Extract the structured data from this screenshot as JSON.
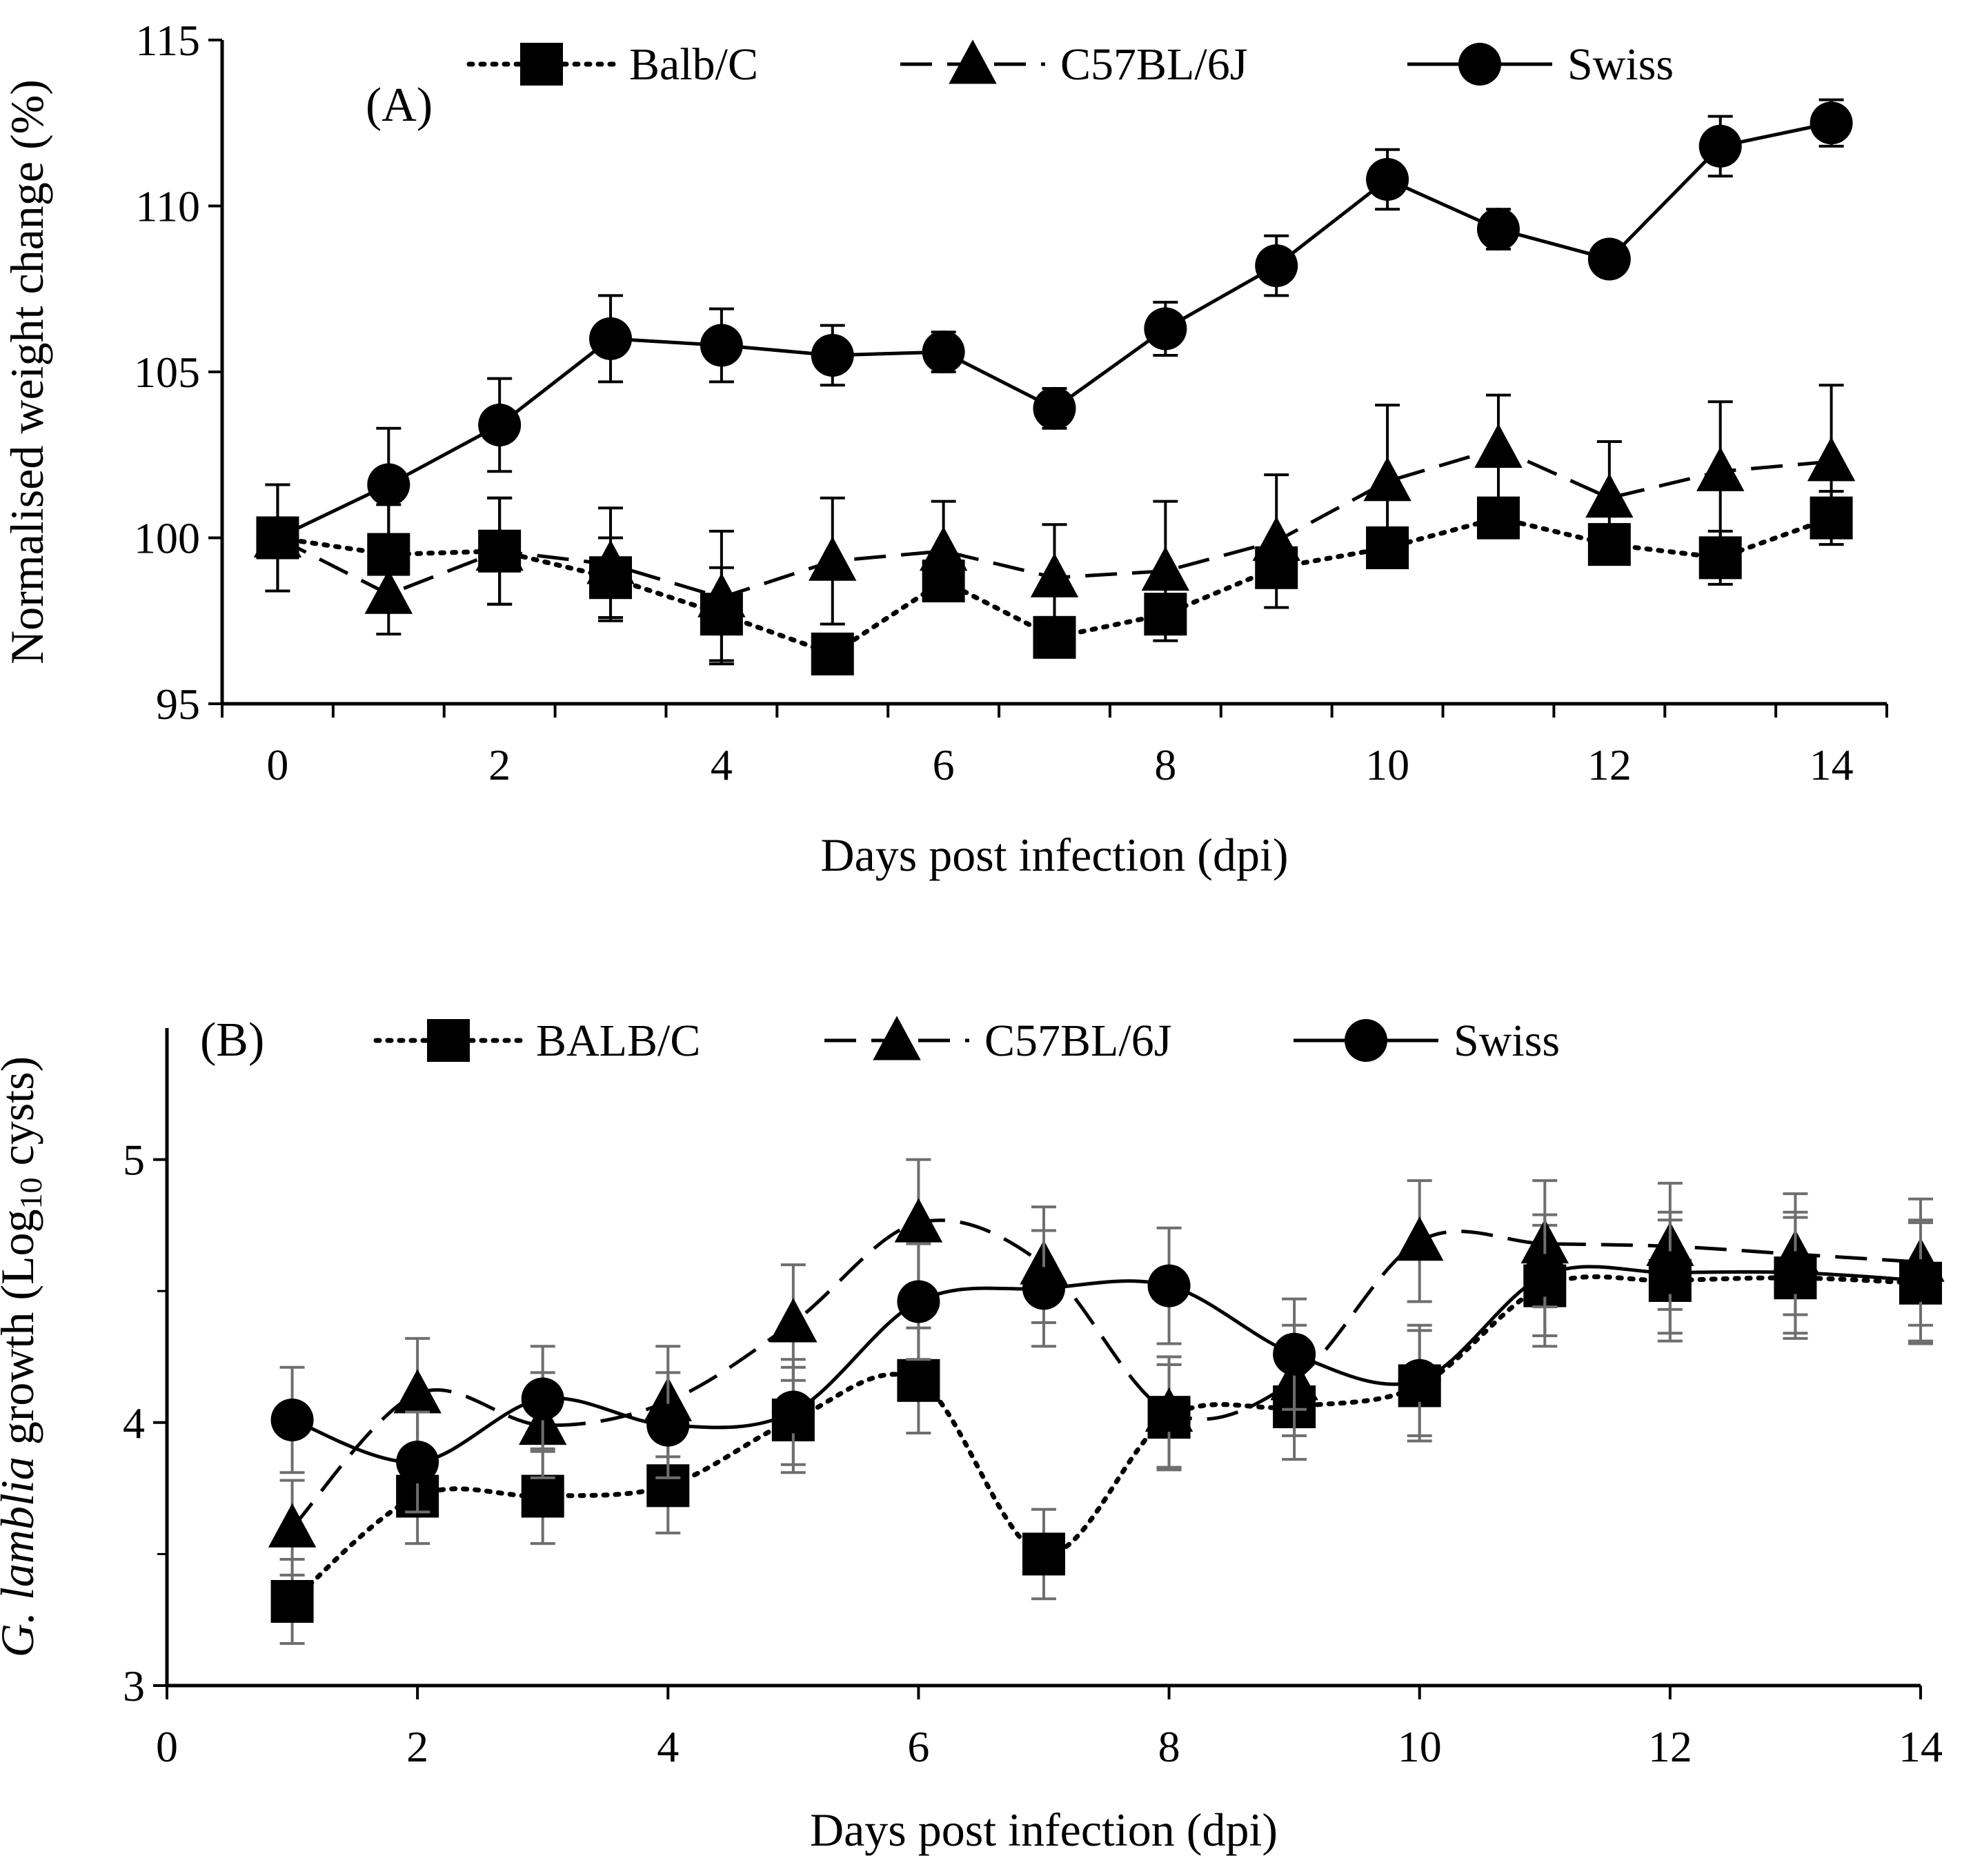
{
  "chart_data": [
    {
      "type": "line",
      "panel_label": "(A)",
      "xlabel": "Days post infection  (dpi)",
      "ylabel": "Normalised weight change (%)",
      "xlim": [
        -0.5,
        14.5
      ],
      "ylim": [
        95,
        115
      ],
      "xticks": [
        "0",
        "2",
        "4",
        "6",
        "8",
        "10",
        "12",
        "14"
      ],
      "yticks": [
        "95",
        "100",
        "105",
        "110",
        "115"
      ],
      "x": [
        0,
        1,
        2,
        3,
        4,
        5,
        6,
        7,
        8,
        9,
        10,
        11,
        12,
        13,
        14
      ],
      "legend_position": "top",
      "series": [
        {
          "name": "Balb/C",
          "marker": "square",
          "line": "dotted",
          "error_color": "#000000",
          "values": [
            100.0,
            99.5,
            99.6,
            98.8,
            97.7,
            96.5,
            98.7,
            97.0,
            97.7,
            99.1,
            99.7,
            100.6,
            99.8,
            99.4,
            100.6
          ],
          "errors": [
            1.6,
            1.5,
            1.6,
            1.2,
            1.4,
            0.0,
            0.0,
            0.0,
            0.0,
            0.0,
            0.0,
            0.0,
            0.0,
            0.8,
            0.8
          ]
        },
        {
          "name": "C57BL/6J",
          "marker": "triangle",
          "line": "dashed",
          "error_color": "#000000",
          "values": [
            100.0,
            98.3,
            99.6,
            99.2,
            98.2,
            99.3,
            99.6,
            98.8,
            99.0,
            99.9,
            101.7,
            102.7,
            101.2,
            102.0,
            102.3
          ],
          "errors": [
            1.6,
            1.2,
            1.6,
            1.7,
            2.0,
            1.9,
            1.5,
            1.6,
            2.1,
            2.0,
            2.3,
            1.6,
            1.7,
            2.1,
            2.3
          ]
        },
        {
          "name": "Swiss",
          "marker": "circle",
          "line": "solid",
          "error_color": "#000000",
          "values": [
            100.0,
            101.6,
            103.4,
            106.0,
            105.8,
            105.5,
            105.6,
            103.9,
            106.3,
            108.2,
            110.8,
            109.3,
            108.4,
            111.8,
            112.5
          ],
          "errors": [
            0.0,
            1.7,
            1.4,
            1.3,
            1.1,
            0.9,
            0.6,
            0.6,
            0.8,
            0.9,
            0.9,
            0.6,
            0.0,
            0.9,
            0.7
          ]
        }
      ]
    },
    {
      "type": "line",
      "panel_label": "(B)",
      "xlabel": "Days post infection (dpi)",
      "ylabel_italic": "G. lamblia",
      "ylabel_main": " growth (Log",
      "ylabel_sub": "10",
      "ylabel_end": " cysts)",
      "xlim": [
        0,
        14
      ],
      "ylim": [
        3,
        5.5
      ],
      "xticks": [
        "0",
        "2",
        "4",
        "6",
        "8",
        "10",
        "12",
        "14"
      ],
      "yticks": [
        "3",
        "4",
        "5"
      ],
      "x": [
        1,
        2,
        3,
        4,
        5,
        6,
        7,
        8,
        9,
        10,
        11,
        12,
        13,
        14
      ],
      "legend_position": "top",
      "series": [
        {
          "name": "BALB/C",
          "marker": "square",
          "line": "dotted",
          "error_color": "#6e6e6e",
          "values": [
            3.32,
            3.72,
            3.72,
            3.76,
            4.01,
            4.16,
            3.5,
            4.02,
            4.06,
            4.14,
            4.52,
            4.54,
            4.55,
            4.53
          ],
          "errors": [
            0.16,
            0.18,
            0.18,
            0.18,
            0.2,
            0.2,
            0.17,
            0.2,
            0.2,
            0.21,
            0.23,
            0.23,
            0.23,
            0.23
          ]
        },
        {
          "name": "C57BL/6J",
          "marker": "triangle",
          "line": "dashed",
          "error_color": "#6e6e6e",
          "values": [
            3.6,
            4.11,
            3.99,
            4.08,
            4.38,
            4.76,
            4.6,
            4.04,
            4.16,
            4.69,
            4.68,
            4.67,
            4.64,
            4.61
          ],
          "errors": [
            0.18,
            0.21,
            0.2,
            0.21,
            0.22,
            0.24,
            0.22,
            0.21,
            0.21,
            0.23,
            0.24,
            0.24,
            0.23,
            0.24
          ]
        },
        {
          "name": "Swiss",
          "marker": "circle",
          "line": "solid",
          "error_color": "#6e6e6e",
          "values": [
            4.01,
            3.85,
            4.09,
            3.99,
            4.04,
            4.46,
            4.51,
            4.52,
            4.26,
            4.16,
            4.56,
            4.57,
            4.57,
            4.54
          ],
          "errors": [
            0.2,
            0.19,
            0.2,
            0.2,
            0.2,
            0.22,
            0.22,
            0.22,
            0.21,
            0.21,
            0.23,
            0.23,
            0.23,
            0.23
          ]
        }
      ]
    }
  ]
}
